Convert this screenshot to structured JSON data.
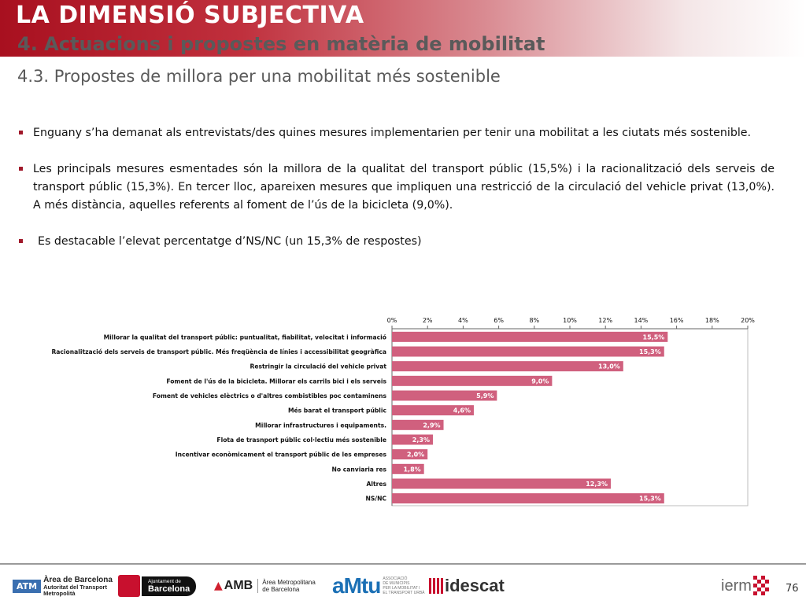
{
  "header": {
    "title": "LA DIMENSIÓ SUBJECTIVA",
    "subtitle": "4. Actuacions i propostes en matèria de mobilitat",
    "section": "4.3. Propostes de millora per una mobilitat més sostenible"
  },
  "bullets": [
    "Enguany s’ha demanat als entrevistats/des quines mesures implementarien per tenir una mobilitat a les ciutats més sostenible.",
    "Les principals mesures esmentades són la millora de la qualitat del transport públic (15,5%) i la racionalització dels serveis de transport públic (15,3%). En tercer lloc, apareixen mesures que impliquen una restricció de la circulació del vehicle privat (13,0%). A més distància, aquelles referents al foment de l’ús de la bicicleta (9,0%).",
    "Es destacable l’elevat percentatge d’NS/NC (un 15,3% de respostes)"
  ],
  "chart_data": {
    "type": "bar",
    "orientation": "horizontal",
    "categories": [
      "Millorar la qualitat del transport públic: puntualitat, fiabilitat, velocitat i informació",
      "Racionalització dels serveis de transport públic. Més freqüència de línies i accessibilitat geogràfica",
      "Restringir la circulació del vehicle privat",
      "Foment de l'ús de la bicicleta. Millorar els carrils bici i els serveis",
      "Foment de vehicles elèctrics o d'altres combistibles poc contaminens",
      "Més barat el transport públic",
      "Millorar infrastructures i equipaments.",
      "Flota de trasnport públic col·lectiu més sostenible",
      "Incentivar econòmicament el transport públic de les empreses",
      "No canviaria res",
      "Altres",
      "NS/NC"
    ],
    "values": [
      15.5,
      15.3,
      13.0,
      9.0,
      5.9,
      4.6,
      2.9,
      2.3,
      2.0,
      1.8,
      12.3,
      15.3
    ],
    "value_labels": [
      "15,5%",
      "15,3%",
      "13,0%",
      "9,0%",
      "5,9%",
      "4,6%",
      "2,9%",
      "2,3%",
      "2,0%",
      "1,8%",
      "12,3%",
      "15,3%"
    ],
    "xticks": [
      "0%",
      "2%",
      "4%",
      "6%",
      "8%",
      "10%",
      "12%",
      "14%",
      "16%",
      "18%",
      "20%"
    ],
    "xlim": [
      0,
      20
    ],
    "axis_position": "top",
    "grid": false,
    "bar_color": "#d0607e"
  },
  "footer": {
    "atm": "ATM",
    "atm_name": "Àrea de Barcelona",
    "atm_sub1": "Autoritat del Transport",
    "atm_sub2": "Metropolità",
    "ajuntament_top": "Ajuntament de",
    "ajuntament_name": "Barcelona",
    "amb": "AMB",
    "amb_l1": "Àrea Metropolitana",
    "amb_l2": "de Barcelona",
    "amtu": "aMtu",
    "amtu_l1": "ASSOCIACIÓ",
    "amtu_l2": "DE MUNICIPIS",
    "amtu_l3": "PER LA MOBILITAT I",
    "amtu_l4": "EL TRANSPORT URBÀ",
    "idescat": "idescat",
    "iermb": "ierm",
    "page": "76"
  }
}
